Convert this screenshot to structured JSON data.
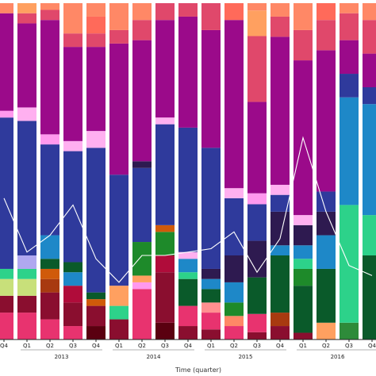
{
  "chart_data": {
    "type": "bar",
    "stacked": true,
    "normalized": true,
    "xlabel": "Time (quarter)",
    "ylabel": "",
    "title": "",
    "categories": [
      "Q4",
      "Q1",
      "Q2",
      "Q3",
      "Q4",
      "Q1",
      "Q2",
      "Q3",
      "Q4",
      "Q1",
      "Q2",
      "Q3",
      "Q4",
      "Q1",
      "Q2",
      "Q3",
      "Q4"
    ],
    "years": [
      {
        "label": "2013",
        "first": 1,
        "last": 4
      },
      {
        "label": "2014",
        "first": 5,
        "last": 8
      },
      {
        "label": "2015",
        "first": 9,
        "last": 12
      },
      {
        "label": "2016",
        "first": 13,
        "last": 16
      }
    ],
    "ylim": [
      0,
      1
    ],
    "grid": false,
    "legend": "none",
    "colors": {
      "axis": "#222222",
      "line": "#ffffff"
    },
    "stacks": [
      [
        [
          "#e8336f",
          0.08
        ],
        [
          "#8a0e2f",
          0.05
        ],
        [
          "#c8e07a",
          0.05
        ],
        [
          "#2dd28a",
          0.03
        ],
        [
          "#2f3a9c",
          0.45
        ],
        [
          "#ff99ee",
          0.02
        ],
        [
          "#9b0a8a",
          0.29
        ],
        [
          "#ff8866",
          0.03
        ]
      ],
      [
        [
          "#e8336f",
          0.08
        ],
        [
          "#8a0e2f",
          0.05
        ],
        [
          "#c8e07a",
          0.05
        ],
        [
          "#2dd28a",
          0.03
        ],
        [
          "#b0a8f0",
          0.04
        ],
        [
          "#2f3a9c",
          0.4
        ],
        [
          "#ffb0f0",
          0.04
        ],
        [
          "#9b0a8a",
          0.25
        ],
        [
          "#e0486b",
          0.03
        ],
        [
          "#ffa060",
          0.03
        ]
      ],
      [
        [
          "#e8336f",
          0.06
        ],
        [
          "#8a0e2f",
          0.08
        ],
        [
          "#a83a10",
          0.04
        ],
        [
          "#d05a0a",
          0.03
        ],
        [
          "#0a5a2a",
          0.03
        ],
        [
          "#1e88c8",
          0.07
        ],
        [
          "#2f3a9c",
          0.27
        ],
        [
          "#ff99ee",
          0.03
        ],
        [
          "#9b0a8a",
          0.34
        ],
        [
          "#e0486b",
          0.03
        ],
        [
          "#ff8866",
          0.02
        ]
      ],
      [
        [
          "#e8336f",
          0.04
        ],
        [
          "#8a0e2f",
          0.07
        ],
        [
          "#b00c3a",
          0.05
        ],
        [
          "#1e88c8",
          0.04
        ],
        [
          "#0a5a2a",
          0.03
        ],
        [
          "#2f3a9c",
          0.33
        ],
        [
          "#ffb0f0",
          0.03
        ],
        [
          "#9b0a8a",
          0.28
        ],
        [
          "#e0486b",
          0.04
        ],
        [
          "#ff8866",
          0.09
        ]
      ],
      [
        [
          "#5a0010",
          0.04
        ],
        [
          "#8a0e2f",
          0.06
        ],
        [
          "#d05a0a",
          0.02
        ],
        [
          "#0a5a2a",
          0.02
        ],
        [
          "#2f3a9c",
          0.43
        ],
        [
          "#ffb0f0",
          0.05
        ],
        [
          "#9b0a8a",
          0.25
        ],
        [
          "#e0486b",
          0.04
        ],
        [
          "#ff6a5a",
          0.05
        ],
        [
          "#ff8866",
          0.04
        ]
      ],
      [
        [
          "#8a0e2f",
          0.06
        ],
        [
          "#2dd28a",
          0.04
        ],
        [
          "#ffa060",
          0.06
        ],
        [
          "#2f3a9c",
          0.33
        ],
        [
          "#9b0a8a",
          0.39
        ],
        [
          "#e0486b",
          0.04
        ],
        [
          "#ff8866",
          0.08
        ]
      ],
      [
        [
          "#e8336f",
          0.15
        ],
        [
          "#ff99ee",
          0.02
        ],
        [
          "#ffa060",
          0.02
        ],
        [
          "#1e8a2a",
          0.1
        ],
        [
          "#2f3a9c",
          0.22
        ],
        [
          "#2e1a50",
          0.02
        ],
        [
          "#9b0a8a",
          0.36
        ],
        [
          "#e0486b",
          0.06
        ],
        [
          "#ff8866",
          0.05
        ]
      ],
      [
        [
          "#5a0010",
          0.05
        ],
        [
          "#8a0e2f",
          0.15
        ],
        [
          "#b00c3a",
          0.05
        ],
        [
          "#1e8a2a",
          0.07
        ],
        [
          "#d05a0a",
          0.02
        ],
        [
          "#2f3a9c",
          0.3
        ],
        [
          "#ffb0f0",
          0.02
        ],
        [
          "#9b0a8a",
          0.29
        ],
        [
          "#e0486b",
          0.05
        ]
      ],
      [
        [
          "#8a0e2f",
          0.04
        ],
        [
          "#e8336f",
          0.06
        ],
        [
          "#0a5a2a",
          0.08
        ],
        [
          "#2dd28a",
          0.02
        ],
        [
          "#1e88c8",
          0.04
        ],
        [
          "#ffb0f0",
          0.02
        ],
        [
          "#2f3a9c",
          0.37
        ],
        [
          "#9b0a8a",
          0.33
        ],
        [
          "#e0486b",
          0.04
        ]
      ],
      [
        [
          "#8a0e2f",
          0.03
        ],
        [
          "#e8336f",
          0.05
        ],
        [
          "#ff9090",
          0.03
        ],
        [
          "#0a5a2a",
          0.04
        ],
        [
          "#1e88c8",
          0.03
        ],
        [
          "#2e1a50",
          0.03
        ],
        [
          "#2f3a9c",
          0.36
        ],
        [
          "#9b0a8a",
          0.35
        ],
        [
          "#e0486b",
          0.08
        ]
      ],
      [
        [
          "#e8336f",
          0.04
        ],
        [
          "#ff8866",
          0.03
        ],
        [
          "#1e8a2a",
          0.04
        ],
        [
          "#1e88c8",
          0.06
        ],
        [
          "#2e1a50",
          0.08
        ],
        [
          "#2f3a9c",
          0.17
        ],
        [
          "#ffb0f0",
          0.03
        ],
        [
          "#9b0a8a",
          0.5
        ],
        [
          "#ff6a5a",
          0.05
        ]
      ],
      [
        [
          "#8a0e2f",
          0.02
        ],
        [
          "#e8336f",
          0.05
        ],
        [
          "#0a5a2a",
          0.1
        ],
        [
          "#2e1a50",
          0.1
        ],
        [
          "#2f3a9c",
          0.1
        ],
        [
          "#ff99ee",
          0.03
        ],
        [
          "#9b0a8a",
          0.25
        ],
        [
          "#e0486b",
          0.18
        ],
        [
          "#ffa060",
          0.07
        ],
        [
          "#ff8866",
          0.02
        ]
      ],
      [
        [
          "#8a0e2f",
          0.04
        ],
        [
          "#a83a10",
          0.04
        ],
        [
          "#0a5a2a",
          0.17
        ],
        [
          "#1e88c8",
          0.03
        ],
        [
          "#2e1a50",
          0.1
        ],
        [
          "#2f3a9c",
          0.05
        ],
        [
          "#ffb0f0",
          0.03
        ],
        [
          "#9b0a8a",
          0.44
        ],
        [
          "#e0486b",
          0.06
        ],
        [
          "#ff8866",
          0.04
        ]
      ],
      [
        [
          "#8a0e2f",
          0.02
        ],
        [
          "#0a5a2a",
          0.14
        ],
        [
          "#1e8a2a",
          0.05
        ],
        [
          "#2dd28a",
          0.03
        ],
        [
          "#1e88c8",
          0.04
        ],
        [
          "#2e1a50",
          0.06
        ],
        [
          "#ffb0f0",
          0.03
        ],
        [
          "#9b0a8a",
          0.46
        ],
        [
          "#e0486b",
          0.09
        ],
        [
          "#ff8866",
          0.08
        ]
      ],
      [
        [
          "#ffa060",
          0.05
        ],
        [
          "#0a5a2a",
          0.16
        ],
        [
          "#1e88c8",
          0.1
        ],
        [
          "#2e1a50",
          0.07
        ],
        [
          "#2f3a9c",
          0.06
        ],
        [
          "#9b0a8a",
          0.42
        ],
        [
          "#e0486b",
          0.09
        ],
        [
          "#ff6a5a",
          0.05
        ]
      ],
      [
        [
          "#2e8b3a",
          0.05
        ],
        [
          "#2dd28a",
          0.35
        ],
        [
          "#1e88c8",
          0.32
        ],
        [
          "#2f3a9c",
          0.07
        ],
        [
          "#9b0a8a",
          0.1
        ],
        [
          "#e0486b",
          0.08
        ],
        [
          "#ff8866",
          0.03
        ]
      ],
      [
        [
          "#0a5a2a",
          0.25
        ],
        [
          "#2dd28a",
          0.12
        ],
        [
          "#1e88c8",
          0.33
        ],
        [
          "#2f3a9c",
          0.05
        ],
        [
          "#9b0a8a",
          0.1
        ],
        [
          "#e0486b",
          0.1
        ],
        [
          "#ff8866",
          0.05
        ]
      ]
    ],
    "overlay_line": [
      0.42,
      0.26,
      0.31,
      0.4,
      0.24,
      0.17,
      0.25,
      0.25,
      0.26,
      0.27,
      0.32,
      0.2,
      0.3,
      0.6,
      0.38,
      0.22,
      0.19
    ]
  }
}
